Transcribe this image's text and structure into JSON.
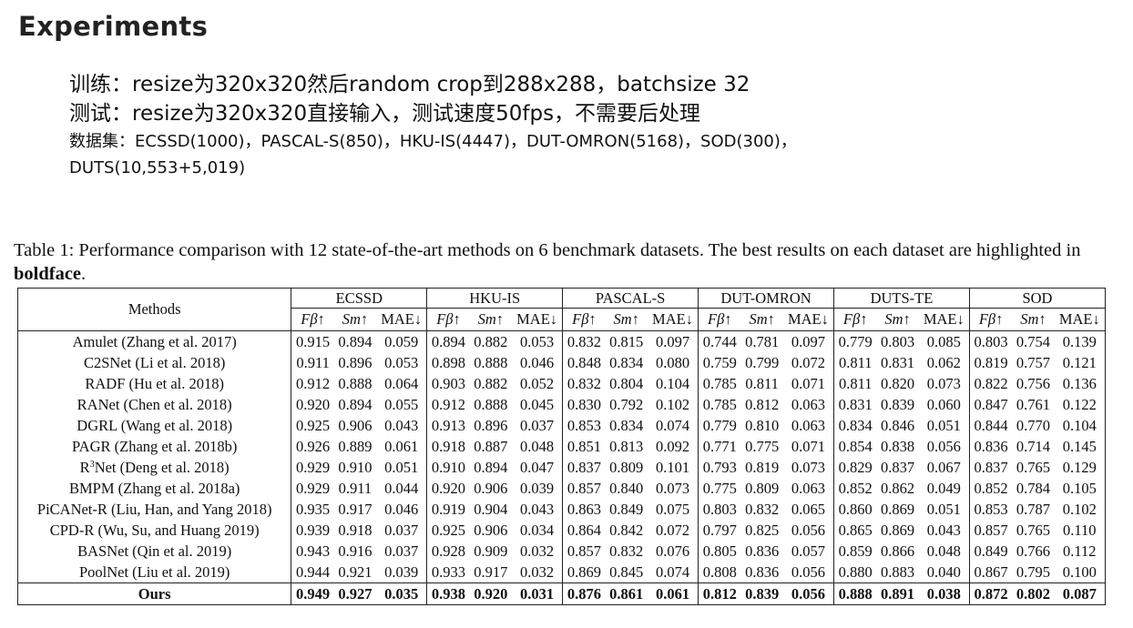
{
  "title": "Experiments",
  "notes": {
    "train": "训练：resize为320x320然后random crop到288x288，batchsize 32",
    "test": "测试：resize为320x320直接输入，测试速度50fps，不需要后处理",
    "datasets_1": "数据集：ECSSD(1000)，PASCAL-S(850)，HKU-IS(4447)，DUT-OMRON(5168)，SOD(300)，",
    "datasets_2": "DUTS(10,553+5,019)"
  },
  "caption": {
    "text": "Table 1: Performance comparison with 12 state-of-the-art methods on 6 benchmark datasets. The best results on each dataset are highlighted in ",
    "bold": "boldface",
    "end": "."
  },
  "table": {
    "methods_header": "Methods",
    "datasets": [
      "ECSSD",
      "HKU-IS",
      "PASCAL-S",
      "DUT-OMRON",
      "DUTS-TE",
      "SOD"
    ],
    "metrics": [
      "Fβ↑",
      "Sm↑",
      "MAE↓"
    ],
    "rows": [
      {
        "method": "Amulet (Zhang et al. 2017)",
        "values": [
          "0.915",
          "0.894",
          "0.059",
          "0.894",
          "0.882",
          "0.053",
          "0.832",
          "0.815",
          "0.097",
          "0.744",
          "0.781",
          "0.097",
          "0.779",
          "0.803",
          "0.085",
          "0.803",
          "0.754",
          "0.139"
        ]
      },
      {
        "method": "C2SNet (Li et al. 2018)",
        "values": [
          "0.911",
          "0.896",
          "0.053",
          "0.898",
          "0.888",
          "0.046",
          "0.848",
          "0.834",
          "0.080",
          "0.759",
          "0.799",
          "0.072",
          "0.811",
          "0.831",
          "0.062",
          "0.819",
          "0.757",
          "0.121"
        ]
      },
      {
        "method": "RADF (Hu et al. 2018)",
        "values": [
          "0.912",
          "0.888",
          "0.064",
          "0.903",
          "0.882",
          "0.052",
          "0.832",
          "0.804",
          "0.104",
          "0.785",
          "0.811",
          "0.071",
          "0.811",
          "0.820",
          "0.073",
          "0.822",
          "0.756",
          "0.136"
        ]
      },
      {
        "method": "RANet (Chen et al. 2018)",
        "values": [
          "0.920",
          "0.894",
          "0.055",
          "0.912",
          "0.888",
          "0.045",
          "0.830",
          "0.792",
          "0.102",
          "0.785",
          "0.812",
          "0.063",
          "0.831",
          "0.839",
          "0.060",
          "0.847",
          "0.761",
          "0.122"
        ]
      },
      {
        "method": "DGRL (Wang et al. 2018)",
        "values": [
          "0.925",
          "0.906",
          "0.043",
          "0.913",
          "0.896",
          "0.037",
          "0.853",
          "0.834",
          "0.074",
          "0.779",
          "0.810",
          "0.063",
          "0.834",
          "0.846",
          "0.051",
          "0.844",
          "0.770",
          "0.104"
        ]
      },
      {
        "method": "PAGR (Zhang et al. 2018b)",
        "values": [
          "0.926",
          "0.889",
          "0.061",
          "0.918",
          "0.887",
          "0.048",
          "0.851",
          "0.813",
          "0.092",
          "0.771",
          "0.775",
          "0.071",
          "0.854",
          "0.838",
          "0.056",
          "0.836",
          "0.714",
          "0.145"
        ]
      },
      {
        "method_pre": "R",
        "method_sup": "3",
        "method_post": "Net (Deng et al. 2018)",
        "values": [
          "0.929",
          "0.910",
          "0.051",
          "0.910",
          "0.894",
          "0.047",
          "0.837",
          "0.809",
          "0.101",
          "0.793",
          "0.819",
          "0.073",
          "0.829",
          "0.837",
          "0.067",
          "0.837",
          "0.765",
          "0.129"
        ]
      },
      {
        "method": "BMPM (Zhang et al. 2018a)",
        "values": [
          "0.929",
          "0.911",
          "0.044",
          "0.920",
          "0.906",
          "0.039",
          "0.857",
          "0.840",
          "0.073",
          "0.775",
          "0.809",
          "0.063",
          "0.852",
          "0.862",
          "0.049",
          "0.852",
          "0.784",
          "0.105"
        ]
      },
      {
        "method": "PiCANet-R (Liu, Han, and Yang 2018)",
        "values": [
          "0.935",
          "0.917",
          "0.046",
          "0.919",
          "0.904",
          "0.043",
          "0.863",
          "0.849",
          "0.075",
          "0.803",
          "0.832",
          "0.065",
          "0.860",
          "0.869",
          "0.051",
          "0.853",
          "0.787",
          "0.102"
        ]
      },
      {
        "method": "CPD-R (Wu, Su, and Huang 2019)",
        "values": [
          "0.939",
          "0.918",
          "0.037",
          "0.925",
          "0.906",
          "0.034",
          "0.864",
          "0.842",
          "0.072",
          "0.797",
          "0.825",
          "0.056",
          "0.865",
          "0.869",
          "0.043",
          "0.857",
          "0.765",
          "0.110"
        ]
      },
      {
        "method": "BASNet (Qin et al. 2019)",
        "values": [
          "0.943",
          "0.916",
          "0.037",
          "0.928",
          "0.909",
          "0.032",
          "0.857",
          "0.832",
          "0.076",
          "0.805",
          "0.836",
          "0.057",
          "0.859",
          "0.866",
          "0.048",
          "0.849",
          "0.766",
          "0.112"
        ]
      },
      {
        "method": "PoolNet (Liu et al. 2019)",
        "values": [
          "0.944",
          "0.921",
          "0.039",
          "0.933",
          "0.917",
          "0.032",
          "0.869",
          "0.845",
          "0.074",
          "0.808",
          "0.836",
          "0.056",
          "0.880",
          "0.883",
          "0.040",
          "0.867",
          "0.795",
          "0.100"
        ]
      },
      {
        "method": "Ours",
        "best": true,
        "values": [
          "0.949",
          "0.927",
          "0.035",
          "0.938",
          "0.920",
          "0.031",
          "0.876",
          "0.861",
          "0.061",
          "0.812",
          "0.839",
          "0.056",
          "0.888",
          "0.891",
          "0.038",
          "0.872",
          "0.802",
          "0.087"
        ]
      }
    ]
  }
}
